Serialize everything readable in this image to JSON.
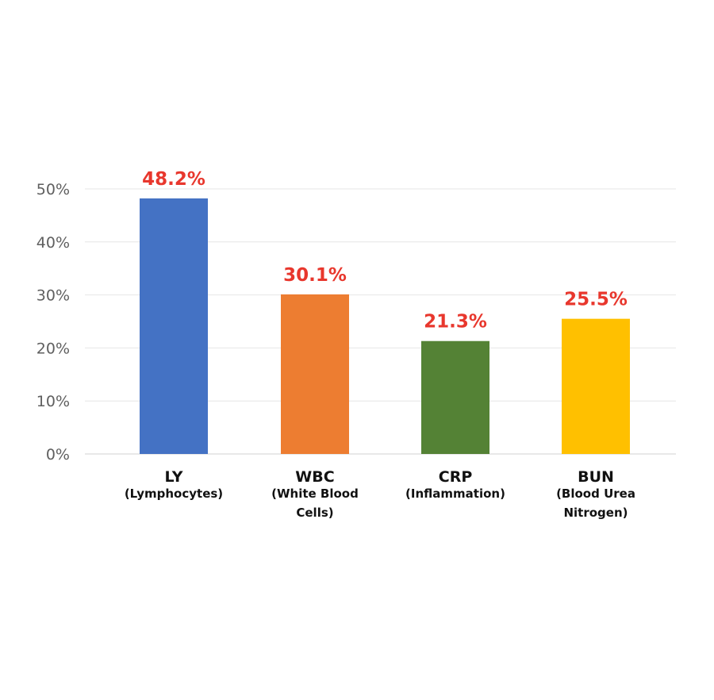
{
  "chart_data": {
    "type": "bar",
    "categories": [
      {
        "label": "LY",
        "sublabel_lines": [
          "(Lymphocytes)"
        ]
      },
      {
        "label": "WBC",
        "sublabel_lines": [
          "(White Blood",
          "Cells)"
        ]
      },
      {
        "label": "CRP",
        "sublabel_lines": [
          "(Inflammation)"
        ]
      },
      {
        "label": "BUN",
        "sublabel_lines": [
          "(Blood Urea",
          "Nitrogen)"
        ]
      }
    ],
    "values": [
      48.2,
      30.1,
      21.3,
      25.5
    ],
    "value_labels": [
      "48.2%",
      "30.1%",
      "21.3%",
      "25.5%"
    ],
    "colors": [
      "#4472c4",
      "#ed7d31",
      "#548235",
      "#ffc000"
    ],
    "value_label_color": "#e8372d",
    "title": "",
    "xlabel": "",
    "ylabel": "",
    "ylim": [
      0,
      50
    ],
    "yticks": [
      0,
      10,
      20,
      30,
      40,
      50
    ],
    "ytick_labels": [
      "0%",
      "10%",
      "20%",
      "30%",
      "40%",
      "50%"
    ],
    "grid": true,
    "legend": "none"
  }
}
